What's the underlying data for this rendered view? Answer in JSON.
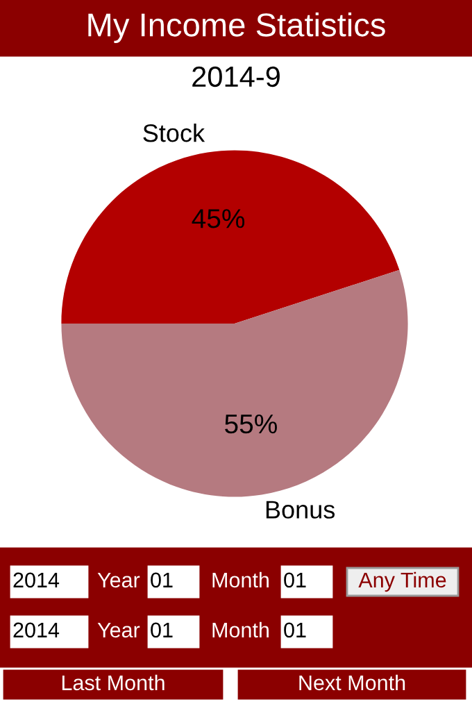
{
  "chart_data": [
    {
      "type": "pie",
      "title": "My Income Statistics",
      "subtitle": "2014-9",
      "categories": [
        "Stock",
        "Bonus"
      ],
      "values": [
        45,
        55
      ],
      "colors": [
        "#b30000",
        "#b57a80"
      ],
      "value_labels": [
        "45%",
        "55%"
      ]
    },
    {
      "type": "other",
      "annotations": [
        "2014",
        "Year",
        "01",
        "Month",
        "01",
        "Any Time",
        "2014",
        "Year",
        "01",
        "Month",
        "01",
        "Last Month",
        "Next Month"
      ]
    }
  ]
}
